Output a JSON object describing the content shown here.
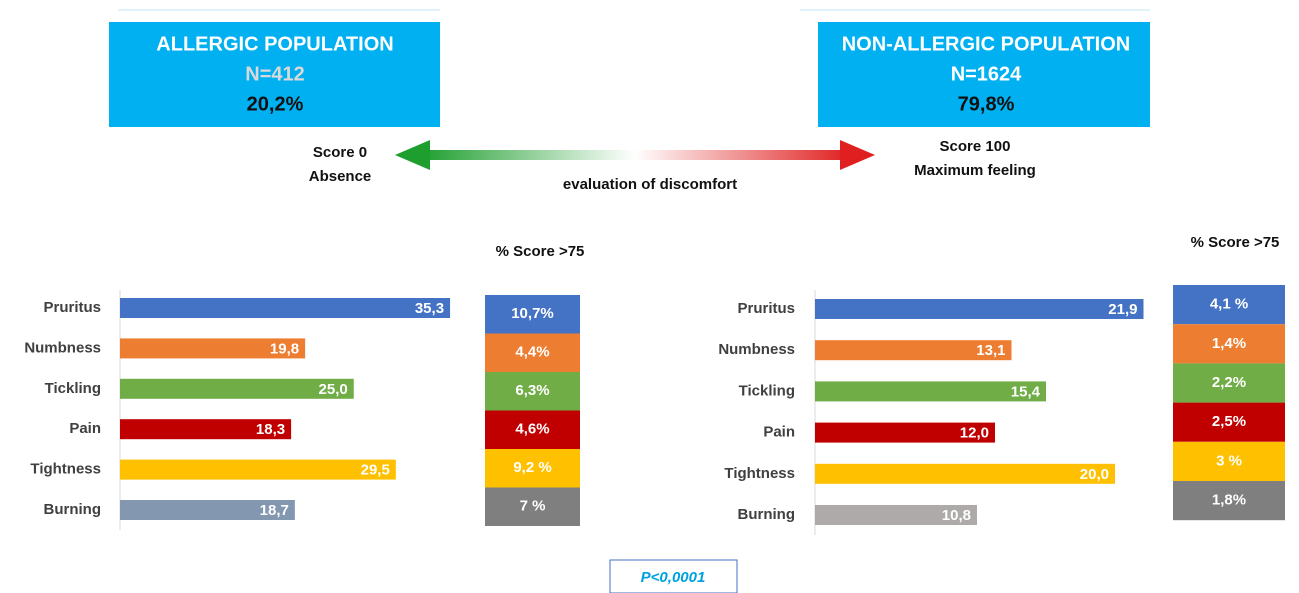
{
  "panels": [
    {
      "title": "ALLERGIC POPULATION",
      "n": "N=412",
      "share": "20,2%"
    },
    {
      "title": "NON-ALLERGIC POPULATION",
      "n": "N=1624",
      "share": "79,8%"
    }
  ],
  "scale": {
    "left": [
      "Score 0",
      "Absence"
    ],
    "right": [
      "Score 100",
      "Maximum feeling"
    ],
    "caption": "evaluation of discomfort"
  },
  "p_value": "P<0,0001",
  "chart_data": [
    {
      "type": "bar",
      "categories": [
        "Pruritus",
        "Numbness",
        "Tickling",
        "Pain",
        "Tightness",
        "Burning"
      ],
      "values": [
        35.3,
        19.8,
        25.0,
        18.3,
        29.5,
        18.7
      ],
      "value_labels": [
        "35,3",
        "19,8",
        "25,0",
        "18,3",
        "29,5",
        "18,7"
      ],
      "colors": [
        "#4472c4",
        "#ed7d31",
        "#70ad47",
        "#c00000",
        "#ffc000",
        "#8497b0"
      ],
      "xlim": [
        0,
        40
      ],
      "score": {
        "title": "% Score >75",
        "labels": [
          "10,7%",
          "4,4%",
          "6,3%",
          "4,6%",
          "9,2 %",
          "7 %"
        ],
        "colors": [
          "#4472c4",
          "#ed7d31",
          "#70ad47",
          "#c00000",
          "#ffc000",
          "#7f7f7f"
        ]
      }
    },
    {
      "type": "bar",
      "categories": [
        "Pruritus",
        "Numbness",
        "Tickling",
        "Pain",
        "Tightness",
        "Burning"
      ],
      "values": [
        21.9,
        13.1,
        15.4,
        12.0,
        20.0,
        10.8
      ],
      "value_labels": [
        "21,9",
        "13,1",
        "15,4",
        "12,0",
        "20,0",
        "10,8"
      ],
      "colors": [
        "#4472c4",
        "#ed7d31",
        "#70ad47",
        "#c00000",
        "#ffc000",
        "#aeaaaa"
      ],
      "xlim": [
        0,
        25
      ],
      "score": {
        "title": "% Score >75",
        "labels": [
          "4,1 %",
          "1,4%",
          "2,2%",
          "2,5%",
          "3 %",
          "1,8%"
        ],
        "colors": [
          "#4472c4",
          "#ed7d31",
          "#70ad47",
          "#c00000",
          "#ffc000",
          "#7f7f7f"
        ]
      }
    }
  ]
}
